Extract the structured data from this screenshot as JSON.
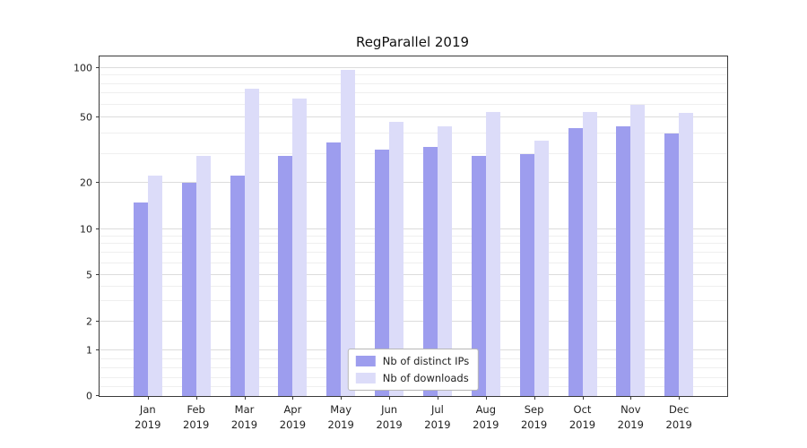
{
  "title": "RegParallel 2019",
  "chart_data": {
    "type": "bar",
    "title": "RegParallel 2019",
    "categories": [
      "Jan",
      "Feb",
      "Mar",
      "Apr",
      "May",
      "Jun",
      "Jul",
      "Aug",
      "Sep",
      "Oct",
      "Nov",
      "Dec"
    ],
    "year": "2019",
    "series": [
      {
        "name": "Nb of distinct IPs",
        "color": "#9d9dee",
        "values": [
          15,
          20,
          22,
          29,
          35,
          32,
          33,
          29,
          30,
          43,
          44,
          40
        ]
      },
      {
        "name": "Nb of downloads",
        "color": "#dcdcf9",
        "values": [
          22,
          29,
          75,
          65,
          98,
          47,
          44,
          54,
          36,
          54,
          60,
          53
        ]
      }
    ],
    "yscale": "symlog",
    "yticks": [
      0,
      1,
      2,
      5,
      10,
      20,
      50,
      100
    ],
    "minor_ticks": [
      0.2,
      0.4,
      0.6,
      0.8,
      3,
      4,
      6,
      7,
      8,
      9,
      30,
      40,
      60,
      70,
      80,
      90
    ],
    "ylim": [
      0,
      110
    ],
    "grid": true,
    "legend_position": "lower center"
  }
}
